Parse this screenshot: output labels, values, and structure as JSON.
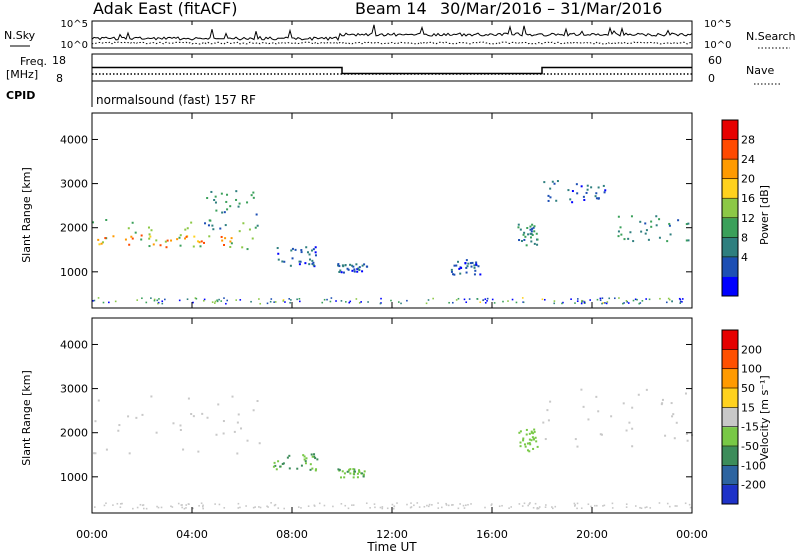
{
  "header": {
    "radar": "Adak East (fitACF)",
    "beam": "Beam 14",
    "dates": "30/Mar/2016 – 31/Mar/2016"
  },
  "strip": {
    "nsky_label": "N.Sky",
    "nsky_ticks": [
      "10^5",
      "10^0"
    ],
    "nsearch_label": "N.Search",
    "nsearch_ticks": [
      "10^5",
      "10^0"
    ],
    "freq_label": "Freq.",
    "freq_unit": "[MHz]",
    "freq_ticks": [
      "18",
      "8"
    ],
    "nave_label": "Nave",
    "nave_ticks": [
      "60",
      "0"
    ],
    "cpid_label": "CPID",
    "cpid_value": "normalsound (fast) 157 RF"
  },
  "axes": {
    "ylabel": "Slant Range [km]",
    "xlabel": "Time UT",
    "yticks": [
      "4000",
      "3000",
      "2000",
      "1000"
    ],
    "xticks": [
      "00:00",
      "04:00",
      "08:00",
      "12:00",
      "16:00",
      "20:00",
      "00:00"
    ]
  },
  "power_scale": {
    "label": "Power [dB]",
    "ticks": [
      "28",
      "24",
      "20",
      "16",
      "12",
      "8",
      "4"
    ],
    "colors": [
      "#0000ff",
      "#1d4fb4",
      "#2f7f7f",
      "#3aa05a",
      "#8cc846",
      "#ffd21e",
      "#ff9a00",
      "#ff4a00",
      "#e60000"
    ]
  },
  "velocity_scale": {
    "label": "Velocity [m s⁻¹]",
    "ticks": [
      "200",
      "100",
      "50",
      "15",
      "-15",
      "-50",
      "-100",
      "-200"
    ],
    "colors": [
      "#1e32c8",
      "#2d64a0",
      "#3c8c5a",
      "#78c846",
      "#c8c8c8",
      "#ffd21e",
      "#ff9a00",
      "#ff5000",
      "#e60000"
    ]
  },
  "chart_data": {
    "type": "heatmap",
    "time_axis_hours": [
      0,
      24
    ],
    "range_axis_km": [
      180,
      4600
    ],
    "freq_MHz": [
      {
        "t0": 0.0,
        "t1": 10.0,
        "freq": 13.0
      },
      {
        "t0": 10.0,
        "t1": 18.0,
        "freq": 10.8
      },
      {
        "t0": 18.0,
        "t1": 24.0,
        "freq": 13.0
      }
    ],
    "power_blobs_dB": [
      {
        "t0": 0.0,
        "t1": 6.8,
        "r0": 1500,
        "r1": 2200,
        "p": 14
      },
      {
        "t0": 0.2,
        "t1": 5.8,
        "r0": 1580,
        "r1": 1850,
        "p": 24
      },
      {
        "t0": 4.4,
        "t1": 6.6,
        "r0": 2000,
        "r1": 2900,
        "p": 10
      },
      {
        "t0": 7.2,
        "t1": 9.0,
        "r0": 1150,
        "r1": 1600,
        "p": 6
      },
      {
        "t0": 9.8,
        "t1": 11.0,
        "r0": 1000,
        "r1": 1200,
        "p": 6
      },
      {
        "t0": 14.2,
        "t1": 15.5,
        "r0": 950,
        "r1": 1300,
        "p": 6
      },
      {
        "t0": 17.0,
        "t1": 17.8,
        "r0": 1600,
        "r1": 2100,
        "p": 10
      },
      {
        "t0": 18.0,
        "t1": 20.5,
        "r0": 2600,
        "r1": 3100,
        "p": 6
      },
      {
        "t0": 21.0,
        "t1": 24.0,
        "r0": 1700,
        "r1": 2300,
        "p": 10
      }
    ],
    "velocity_blobs_ms": [
      {
        "t0": 0.0,
        "t1": 6.8,
        "r0": 1500,
        "r1": 2900,
        "v": 0
      },
      {
        "t0": 7.2,
        "t1": 9.0,
        "r0": 1150,
        "r1": 1600,
        "v": 50
      },
      {
        "t0": 9.8,
        "t1": 11.0,
        "r0": 1000,
        "r1": 1200,
        "v": 40
      },
      {
        "t0": 17.0,
        "t1": 17.8,
        "r0": 1600,
        "r1": 2100,
        "v": 30
      },
      {
        "t0": 18.0,
        "t1": 24.0,
        "r0": 1700,
        "r1": 3100,
        "v": 0
      }
    ]
  }
}
